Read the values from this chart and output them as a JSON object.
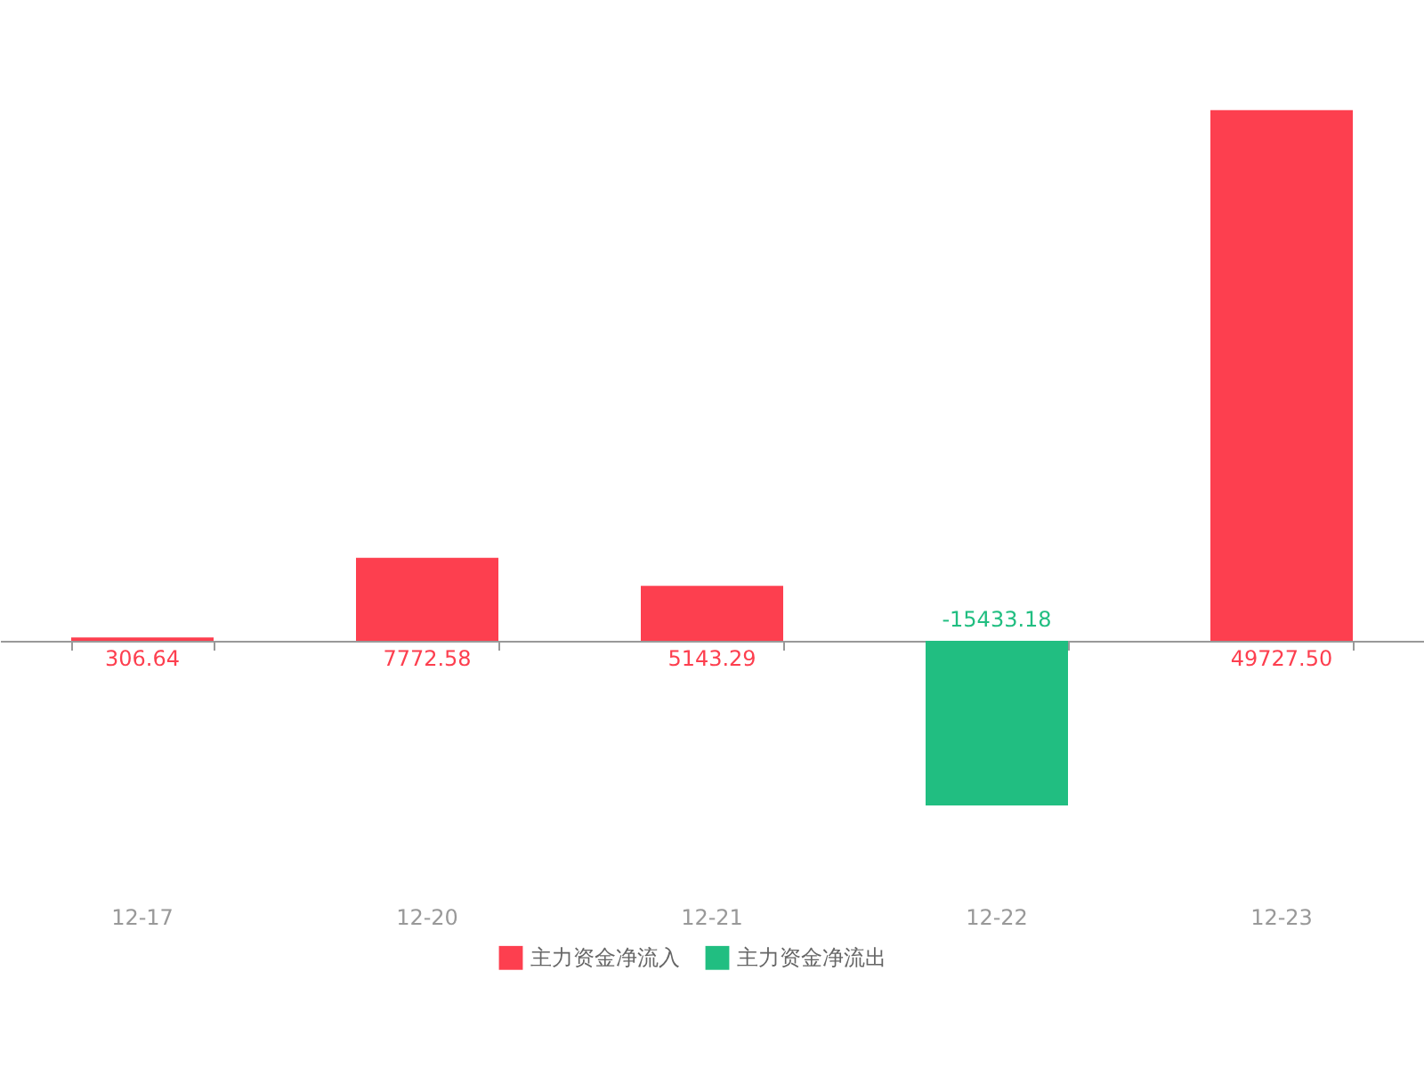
{
  "chart_data": {
    "type": "bar",
    "categories": [
      "12-17",
      "12-20",
      "12-21",
      "12-22",
      "12-23"
    ],
    "series": [
      {
        "name": "主力资金净流入",
        "color": "#fd3f4f",
        "values": [
          306.64,
          7772.58,
          5143.29,
          null,
          49727.5
        ],
        "value_labels": [
          "306.64",
          "7772.58",
          "5143.29",
          null,
          "49727.50"
        ]
      },
      {
        "name": "主力资金净流出",
        "color": "#21be81",
        "values": [
          null,
          null,
          null,
          -15433.18,
          null
        ],
        "value_labels": [
          null,
          null,
          null,
          "-15433.18",
          null
        ]
      }
    ],
    "legend": "bottom"
  }
}
